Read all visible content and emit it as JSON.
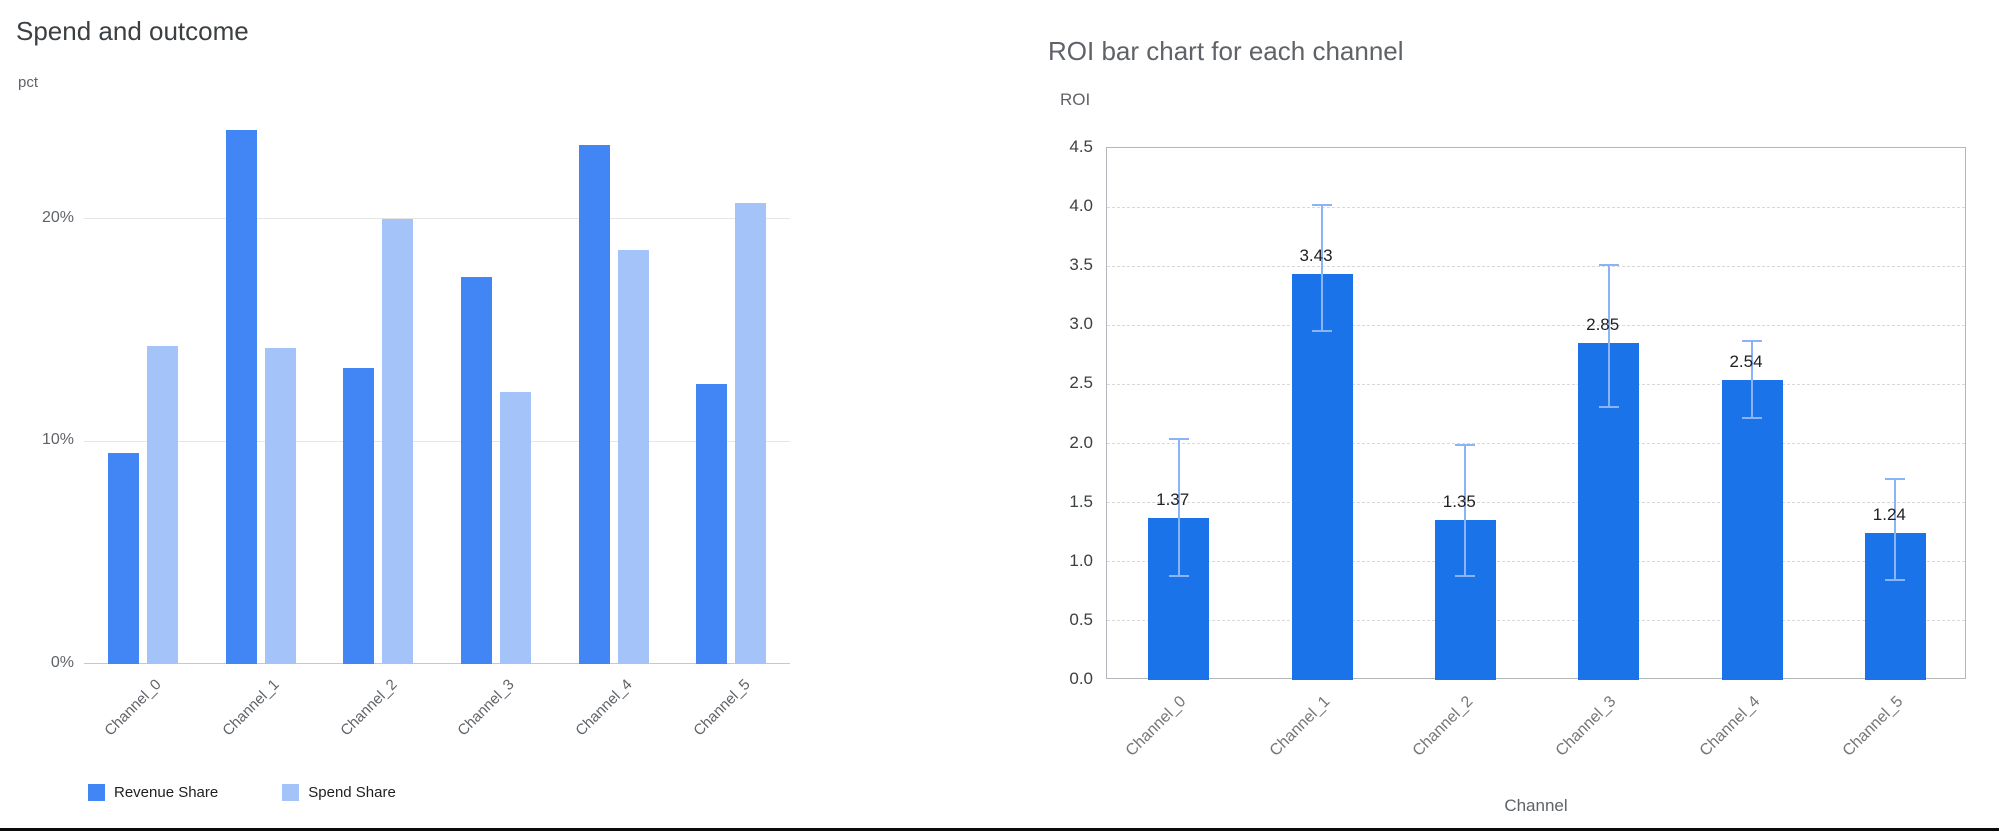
{
  "chart_data": [
    {
      "type": "bar",
      "title": "Spend and outcome",
      "ylabel": "pct",
      "xlabel": "",
      "categories": [
        "Channel_0",
        "Channel_1",
        "Channel_2",
        "Channel_3",
        "Channel_4",
        "Channel_5"
      ],
      "series": [
        {
          "name": "Revenue Share",
          "color": "#4285f4",
          "values": [
            9.5,
            24.0,
            13.3,
            17.4,
            23.3,
            12.6
          ]
        },
        {
          "name": "Spend Share",
          "color": "#a3c3f9",
          "values": [
            14.3,
            14.2,
            20.0,
            12.2,
            18.6,
            20.7
          ]
        }
      ],
      "y_ticks": [
        "0%",
        "10%",
        "20%"
      ],
      "y_tick_values": [
        0,
        10,
        20
      ],
      "ylim": [
        0,
        24.8
      ],
      "grid": "solid-horizontal",
      "legend_position": "bottom"
    },
    {
      "type": "bar",
      "title": "ROI bar chart for each channel",
      "ylabel": "ROI",
      "xlabel": "Channel",
      "categories": [
        "Channel_0",
        "Channel_1",
        "Channel_2",
        "Channel_3",
        "Channel_4",
        "Channel_5"
      ],
      "values": [
        1.37,
        3.43,
        1.35,
        2.85,
        2.54,
        1.24
      ],
      "bar_labels": [
        "1.37",
        "3.43",
        "1.35",
        "2.85",
        "2.54",
        "1.24"
      ],
      "error_low": [
        0.88,
        2.95,
        0.88,
        2.31,
        2.22,
        0.85
      ],
      "error_high": [
        2.04,
        4.02,
        1.99,
        3.51,
        2.87,
        1.7
      ],
      "y_ticks": [
        "0.0",
        "0.5",
        "1.0",
        "1.5",
        "2.0",
        "2.5",
        "3.0",
        "3.5",
        "4.0",
        "4.5"
      ],
      "y_tick_values": [
        0,
        0.5,
        1,
        1.5,
        2,
        2.5,
        3,
        3.5,
        4,
        4.5
      ],
      "ylim": [
        0,
        4.5
      ],
      "bar_color": "#1a73e8",
      "error_color": "#8ab4f8",
      "grid": "dashed-horizontal",
      "legend_position": "none"
    }
  ]
}
